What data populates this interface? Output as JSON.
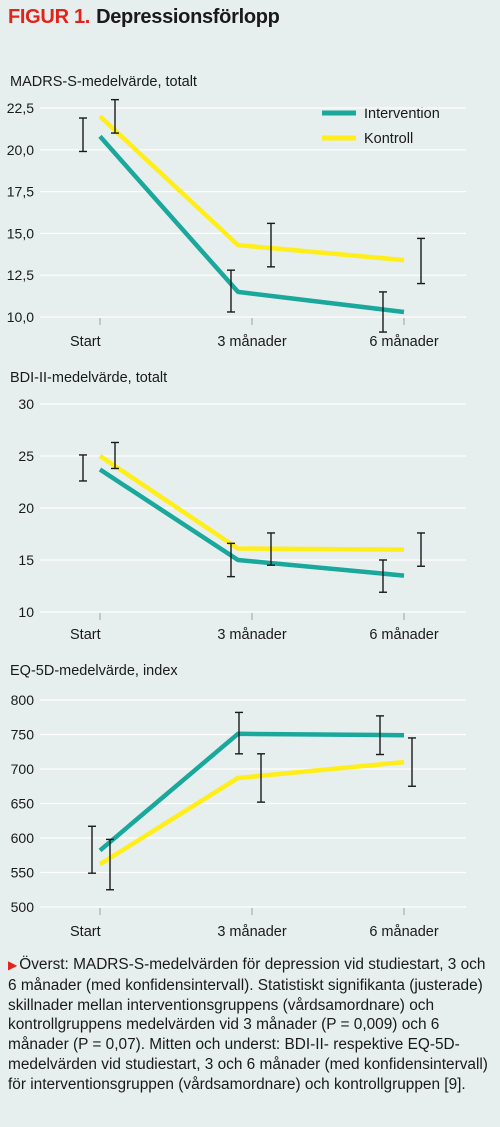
{
  "figure": {
    "label": "FIGUR 1.",
    "title": "Depressionsförlopp"
  },
  "legend": {
    "intervention": "Intervention",
    "kontroll": "Kontroll"
  },
  "colors": {
    "intervention": "#19a89b",
    "kontroll": "#ffee1a",
    "background": "#e6eeee",
    "accent": "#e2231a"
  },
  "caption": {
    "marker": "▶",
    "text": "Överst: MADRS-S-medelvärden för depression vid studiestart, 3 och 6 månader (med konfidensintervall). Statistiskt signifikanta (justerade) skillnader mellan interventionsgruppens (vårdsamordnare) och kontrollgruppens medelvärden vid 3 månader (P = 0,009) och 6 månader (P = 0,07). Mitten och underst: BDI-II- respektive EQ-5D-medelvärden vid studiestart, 3 och 6 månader (med konfidensintervall) för interventionsgruppen (vårdsamordnare) och kontrollgruppen [9]."
  },
  "chart_data": [
    {
      "type": "line",
      "ylabel": "MADRS-S-medelvärde, totalt",
      "categories": [
        "Start",
        "3 månader",
        "6 månader"
      ],
      "ylim": [
        10,
        22.5
      ],
      "yticks": [
        "22,5",
        "20,0",
        "17,5",
        "15,0",
        "12,5",
        "10,0"
      ],
      "ytick_values": [
        22.5,
        20,
        17.5,
        15,
        12.5,
        10
      ],
      "grid": true,
      "legend_position": "top-right",
      "series": [
        {
          "name": "Intervention",
          "values": [
            20.8,
            11.5,
            10.3
          ],
          "ci_low": [
            19.9,
            10.3,
            9.1
          ],
          "ci_high": [
            21.9,
            12.8,
            11.5
          ]
        },
        {
          "name": "Kontroll",
          "values": [
            22.0,
            14.3,
            13.4
          ],
          "ci_low": [
            21.0,
            13.0,
            12.0
          ],
          "ci_high": [
            23.0,
            15.6,
            14.7
          ]
        }
      ]
    },
    {
      "type": "line",
      "ylabel": "BDI-II-medelvärde, totalt",
      "categories": [
        "Start",
        "3 månader",
        "6 månader"
      ],
      "ylim": [
        10,
        30
      ],
      "yticks": [
        "30",
        "25",
        "20",
        "15",
        "10"
      ],
      "ytick_values": [
        30,
        25,
        20,
        15,
        10
      ],
      "grid": true,
      "series": [
        {
          "name": "Intervention",
          "values": [
            23.7,
            15.0,
            13.5
          ],
          "ci_low": [
            22.6,
            13.4,
            11.9
          ],
          "ci_high": [
            25.1,
            16.6,
            15.0
          ]
        },
        {
          "name": "Kontroll",
          "values": [
            25.0,
            16.1,
            16.0
          ],
          "ci_low": [
            23.8,
            14.5,
            14.4
          ],
          "ci_high": [
            26.3,
            17.6,
            17.6
          ]
        }
      ]
    },
    {
      "type": "line",
      "ylabel": "EQ-5D-medelvärde, index",
      "categories": [
        "Start",
        "3 månader",
        "6 månader"
      ],
      "ylim": [
        500,
        800
      ],
      "yticks": [
        "800",
        "750",
        "700",
        "650",
        "600",
        "550",
        "500"
      ],
      "ytick_values": [
        800,
        750,
        700,
        650,
        600,
        550,
        500
      ],
      "grid": true,
      "series": [
        {
          "name": "Intervention",
          "values": [
            582,
            751,
            749
          ],
          "ci_low": [
            549,
            722,
            721
          ],
          "ci_high": [
            617,
            782,
            777
          ]
        },
        {
          "name": "Kontroll",
          "values": [
            562,
            687,
            710
          ],
          "ci_low": [
            525,
            652,
            675
          ],
          "ci_high": [
            598,
            722,
            745
          ]
        }
      ]
    }
  ]
}
